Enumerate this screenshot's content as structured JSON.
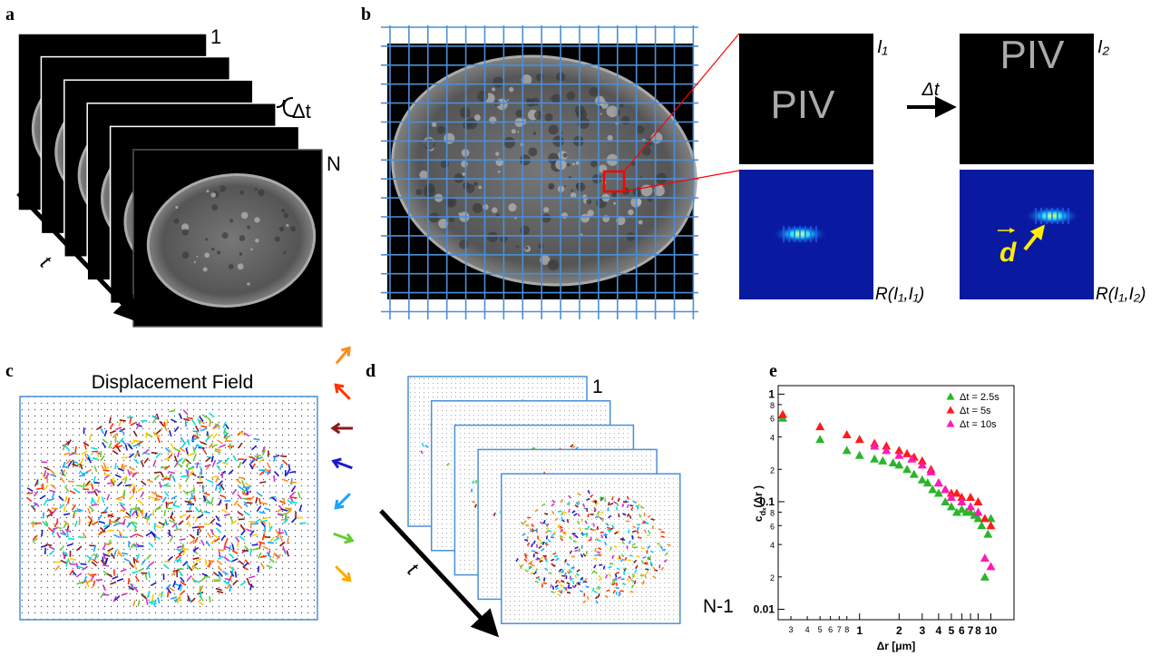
{
  "panel_labels": [
    "a",
    "b",
    "c",
    "d",
    "e"
  ],
  "panel_a": {
    "first_frame": "1",
    "interval": "Δt",
    "last_frame": "N",
    "time_axis": "t"
  },
  "panel_b": {
    "frame_1": "I₁",
    "frame_2": "I₂",
    "window_text_1": "PIV",
    "window_text_2": "PIV",
    "interval": "Δt",
    "displacement": "d",
    "correlation_1": "R(I₁,I₁)",
    "correlation_2": "R(I₁,I₂)"
  },
  "panel_c": {
    "title": "Displacement Field"
  },
  "panel_d": {
    "first_frame": "1",
    "last_frame": "N-1",
    "time_axis": "t"
  },
  "chart_data": {
    "type": "scatter",
    "xlabel": "Δr [μm]",
    "ylabel": "c",
    "ylabel_sub": "dₓ",
    "ylabel_arg": "(Δr )",
    "xscale": "log",
    "yscale": "log",
    "xlim": [
      0.24,
      15
    ],
    "ylim": [
      0.008,
      1.2
    ],
    "xticks": [
      {
        "value": 0.3,
        "label": "3"
      },
      {
        "value": 0.4,
        "label": "4"
      },
      {
        "value": 0.5,
        "label": "5"
      },
      {
        "value": 0.6,
        "label": "6"
      },
      {
        "value": 0.7,
        "label": "7"
      },
      {
        "value": 0.8,
        "label": "8"
      },
      1,
      2,
      3,
      4,
      5,
      6,
      7,
      8,
      10
    ],
    "yticks": [
      0.01,
      {
        "value": 0.02,
        "label": "2"
      },
      {
        "value": 0.04,
        "label": "4"
      },
      {
        "value": 0.06,
        "label": "6"
      },
      {
        "value": 0.08,
        "label": "8"
      },
      0.1,
      {
        "value": 0.2,
        "label": "2"
      },
      {
        "value": 0.4,
        "label": "4"
      },
      {
        "value": 0.6,
        "label": "6"
      },
      {
        "value": 0.8,
        "label": "8"
      },
      1
    ],
    "legend": "upper right",
    "series": [
      {
        "name": "Δt = 2.5s",
        "color": "#2bb52b",
        "x": [
          0.26,
          0.5,
          0.8,
          1.0,
          1.3,
          1.5,
          1.8,
          2.0,
          2.3,
          2.6,
          3.0,
          3.3,
          3.6,
          4.0,
          4.5,
          5.0,
          5.5,
          6.0,
          6.5,
          7.0,
          7.5,
          8.0,
          8.5,
          9.0,
          9.5,
          10.0
        ],
        "values": [
          0.6,
          0.38,
          0.3,
          0.27,
          0.25,
          0.24,
          0.23,
          0.22,
          0.2,
          0.18,
          0.16,
          0.15,
          0.13,
          0.12,
          0.1,
          0.09,
          0.08,
          0.085,
          0.08,
          0.08,
          0.075,
          0.07,
          0.06,
          0.02,
          0.05,
          0.07
        ]
      },
      {
        "name": "Δt = 5s",
        "color": "#ff1a1a",
        "x": [
          0.26,
          0.5,
          0.8,
          1.0,
          1.3,
          1.6,
          2.0,
          2.3,
          2.6,
          3.0,
          3.5,
          4.0,
          4.5,
          5.0,
          5.5,
          6.0,
          7.0,
          8.0,
          9.0,
          10.0
        ],
        "values": [
          0.65,
          0.5,
          0.42,
          0.38,
          0.35,
          0.33,
          0.3,
          0.28,
          0.26,
          0.24,
          0.2,
          0.15,
          0.13,
          0.12,
          0.12,
          0.11,
          0.11,
          0.1,
          0.07,
          0.06
        ]
      },
      {
        "name": "Δt = 10s",
        "color": "#ff1ab4",
        "x": [
          1.3,
          1.6,
          2.0,
          2.5,
          3.0,
          3.5,
          4.0,
          4.5,
          5.0,
          6.0,
          7.0,
          8.0,
          9.0,
          10.0
        ],
        "values": [
          0.33,
          0.3,
          0.27,
          0.25,
          0.22,
          0.19,
          0.15,
          0.13,
          0.11,
          0.1,
          0.09,
          0.08,
          0.03,
          0.025
        ]
      }
    ]
  }
}
